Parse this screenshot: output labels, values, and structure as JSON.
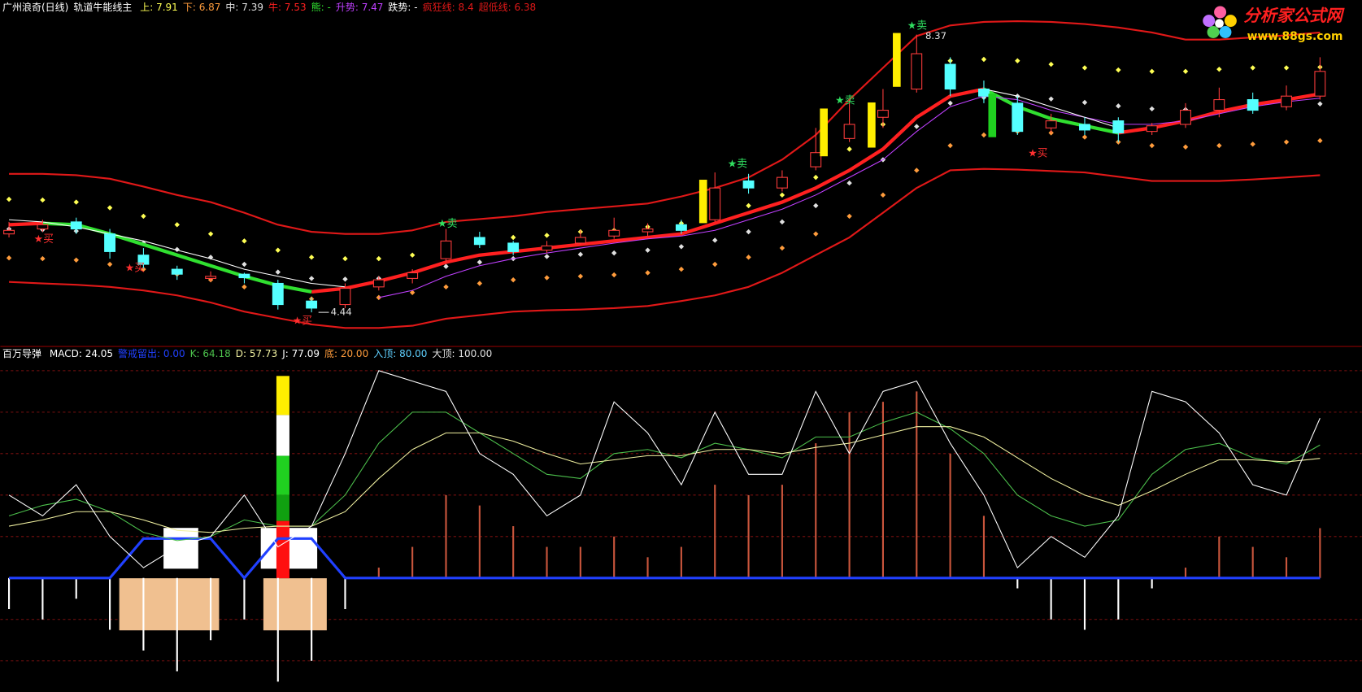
{
  "chart_data": [
    {
      "type": "candlestick",
      "title": "广州浪奇(日线)",
      "subtitle": "轨道牛能线主",
      "ylim": [
        3.97,
        8.86
      ],
      "up_color": "#ff3c3c",
      "down_color": "#54ffff",
      "title_color": "#ffffff",
      "open": [
        5.55,
        5.62,
        5.72,
        5.55,
        5.25,
        5.05,
        4.92,
        4.98,
        4.85,
        4.6,
        4.55,
        4.8,
        4.92,
        5.2,
        5.5,
        5.42,
        5.32,
        5.42,
        5.52,
        5.58,
        5.68,
        5.75,
        6.3,
        6.2,
        6.5,
        6.9,
        7.2,
        7.6,
        7.95,
        7.6,
        7.4,
        7.05,
        7.1,
        7.15,
        7.0,
        7.1,
        7.3,
        7.45,
        7.35,
        7.5
      ],
      "high": [
        5.72,
        5.75,
        5.78,
        5.62,
        5.35,
        5.1,
        5.02,
        5.0,
        4.9,
        4.65,
        4.85,
        4.95,
        5.05,
        5.62,
        5.58,
        5.45,
        5.45,
        5.6,
        5.78,
        5.7,
        5.75,
        6.42,
        6.4,
        6.45,
        7.05,
        7.45,
        7.6,
        8.37,
        8.05,
        7.72,
        7.5,
        7.25,
        7.2,
        7.2,
        7.12,
        7.4,
        7.62,
        7.55,
        7.65,
        8.05
      ],
      "low": [
        5.5,
        5.58,
        5.55,
        5.2,
        5.05,
        4.9,
        4.88,
        4.85,
        4.48,
        4.44,
        4.5,
        4.75,
        4.85,
        5.15,
        5.35,
        5.25,
        5.28,
        5.4,
        5.48,
        5.52,
        5.55,
        5.72,
        6.12,
        6.15,
        6.45,
        6.85,
        7.05,
        7.55,
        7.5,
        7.4,
        6.95,
        6.98,
        6.95,
        6.85,
        6.95,
        7.05,
        7.2,
        7.25,
        7.3,
        7.45
      ],
      "close": [
        5.6,
        5.68,
        5.62,
        5.3,
        5.12,
        4.98,
        4.95,
        4.93,
        4.55,
        4.5,
        4.78,
        4.9,
        5.0,
        5.45,
        5.4,
        5.3,
        5.38,
        5.5,
        5.6,
        5.62,
        5.6,
        6.2,
        6.2,
        6.35,
        6.7,
        7.1,
        7.3,
        8.1,
        7.6,
        7.5,
        7.0,
        7.15,
        7.02,
        6.98,
        7.08,
        7.3,
        7.45,
        7.3,
        7.5,
        7.85
      ],
      "buy_label": "★买",
      "sell_label": "★卖",
      "buy_color": "#ff3030",
      "sell_color": "#30e060",
      "series": [
        {
          "name": "上",
          "color": "#ffff54",
          "style": "dots",
          "values": [
            6.04,
            6.03,
            6.0,
            5.92,
            5.8,
            5.68,
            5.55,
            5.45,
            5.32,
            5.22,
            5.2,
            5.2,
            5.25,
            5.38,
            5.45,
            5.5,
            5.53,
            5.58,
            5.6,
            5.65,
            5.7,
            5.8,
            5.95,
            6.1,
            6.35,
            6.75,
            7.1,
            7.7,
            8.0,
            8.02,
            8.0,
            7.95,
            7.9,
            7.87,
            7.85,
            7.85,
            7.88,
            7.9,
            7.9,
            7.91
          ]
        },
        {
          "name": "下",
          "color": "#ff9c3c",
          "style": "dots",
          "values": [
            5.21,
            5.2,
            5.18,
            5.12,
            5.05,
            4.98,
            4.9,
            4.8,
            4.7,
            4.63,
            4.62,
            4.65,
            4.72,
            4.8,
            4.85,
            4.9,
            4.93,
            4.95,
            4.97,
            5.0,
            5.05,
            5.12,
            5.22,
            5.35,
            5.55,
            5.8,
            6.1,
            6.45,
            6.8,
            6.95,
            7.0,
            6.98,
            6.92,
            6.85,
            6.8,
            6.78,
            6.8,
            6.82,
            6.85,
            6.87
          ]
        },
        {
          "name": "中",
          "color": "#e0e0e0",
          "style": "dots",
          "values": [
            5.62,
            5.61,
            5.59,
            5.52,
            5.42,
            5.33,
            5.22,
            5.12,
            5.01,
            4.92,
            4.91,
            4.92,
            4.98,
            5.09,
            5.15,
            5.2,
            5.23,
            5.26,
            5.28,
            5.32,
            5.37,
            5.46,
            5.58,
            5.72,
            5.95,
            6.27,
            6.6,
            7.07,
            7.4,
            7.48,
            7.5,
            7.46,
            7.41,
            7.36,
            7.32,
            7.31,
            7.34,
            7.36,
            7.37,
            7.39
          ]
        },
        {
          "name": "牛",
          "color": "#ff2020",
          "style": "thick",
          "values": [
            5.68,
            5.7,
            null,
            null,
            null,
            null,
            null,
            null,
            null,
            4.73,
            4.78,
            4.88,
            5.0,
            5.15,
            5.25,
            5.3,
            5.35,
            5.4,
            5.45,
            5.5,
            5.55,
            5.7,
            5.85,
            6.0,
            6.2,
            6.45,
            6.75,
            7.2,
            7.5,
            7.6,
            null,
            null,
            null,
            6.98,
            7.05,
            7.15,
            7.28,
            7.38,
            7.45,
            7.53
          ]
        },
        {
          "name": "熊",
          "color": "#30e030",
          "style": "thick",
          "last_label": "-",
          "values": [
            null,
            5.7,
            5.68,
            5.55,
            5.4,
            5.25,
            5.1,
            4.95,
            4.82,
            4.73,
            null,
            null,
            null,
            null,
            null,
            null,
            null,
            null,
            null,
            null,
            null,
            null,
            null,
            null,
            null,
            null,
            null,
            null,
            null,
            7.6,
            7.35,
            7.18,
            7.08,
            6.98,
            null,
            null,
            null,
            null,
            null,
            null
          ]
        },
        {
          "name": "升势",
          "color": "#c040ff",
          "style": "thin",
          "values": [
            null,
            null,
            null,
            null,
            null,
            null,
            null,
            null,
            null,
            null,
            null,
            4.65,
            4.75,
            4.95,
            5.1,
            5.2,
            5.28,
            5.35,
            5.42,
            5.48,
            5.52,
            5.6,
            5.75,
            5.9,
            6.1,
            6.35,
            6.6,
            7.0,
            7.35,
            7.5,
            7.45,
            7.3,
            7.2,
            7.1,
            7.1,
            7.15,
            7.25,
            7.35,
            7.42,
            7.47
          ]
        },
        {
          "name": "跌势",
          "color": "#ffffff",
          "style": "thin",
          "last_label": "-",
          "values": [
            5.75,
            5.72,
            5.65,
            5.55,
            5.45,
            5.32,
            5.2,
            5.05,
            4.95,
            4.85,
            4.8,
            null,
            null,
            null,
            null,
            null,
            null,
            null,
            null,
            null,
            null,
            null,
            null,
            null,
            null,
            null,
            null,
            null,
            null,
            7.6,
            7.5,
            7.35,
            7.2,
            7.05,
            null,
            null,
            null,
            null,
            null,
            null
          ]
        },
        {
          "name": "疯狂线",
          "color": "#e01818",
          "style": "band",
          "values": [
            6.4,
            6.4,
            6.38,
            6.33,
            6.22,
            6.1,
            6.0,
            5.85,
            5.68,
            5.58,
            5.55,
            5.55,
            5.6,
            5.72,
            5.76,
            5.8,
            5.86,
            5.9,
            5.94,
            5.98,
            6.08,
            6.2,
            6.35,
            6.6,
            6.95,
            7.45,
            7.9,
            8.35,
            8.5,
            8.55,
            8.56,
            8.55,
            8.52,
            8.47,
            8.4,
            8.3,
            8.3,
            8.33,
            8.36,
            8.4
          ]
        },
        {
          "name": "超低线",
          "color": "#e01818",
          "style": "band",
          "values": [
            4.87,
            4.85,
            4.83,
            4.8,
            4.75,
            4.68,
            4.58,
            4.45,
            4.36,
            4.27,
            4.22,
            4.22,
            4.25,
            4.35,
            4.4,
            4.45,
            4.47,
            4.48,
            4.5,
            4.53,
            4.6,
            4.68,
            4.8,
            5.0,
            5.25,
            5.5,
            5.85,
            6.2,
            6.45,
            6.47,
            6.46,
            6.44,
            6.42,
            6.36,
            6.3,
            6.3,
            6.3,
            6.32,
            6.35,
            6.38
          ]
        }
      ]
    },
    {
      "type": "indicator",
      "title": "百万导弹",
      "ylim": [
        -55,
        105
      ],
      "grid": [
        -40,
        -20,
        40,
        60
      ],
      "series": [
        {
          "name": "MACD",
          "type": "bars",
          "color": "#ffffff",
          "up_color": "#c8553c",
          "down_color": "#ffffff",
          "values": [
            -15,
            -20,
            -10,
            -25,
            -35,
            -45,
            -30,
            -20,
            -50,
            -40,
            -15,
            5,
            15,
            40,
            35,
            25,
            15,
            15,
            20,
            10,
            15,
            45,
            40,
            45,
            65,
            80,
            85,
            90,
            60,
            30,
            -5,
            -20,
            -25,
            -20,
            -5,
            5,
            20,
            15,
            10,
            24.05
          ]
        },
        {
          "name": "警戒留出",
          "type": "line",
          "color": "#2040ff",
          "width": 3,
          "last_label": "0.00",
          "values": [
            0,
            0,
            0,
            0,
            19,
            19,
            19,
            0,
            19,
            19,
            0,
            0,
            0,
            0,
            0,
            0,
            0,
            0,
            0,
            0,
            0,
            0,
            0,
            0,
            0,
            0,
            0,
            0,
            0,
            0,
            0,
            0,
            0,
            0,
            0,
            0,
            0,
            0,
            0,
            0
          ]
        },
        {
          "name": "K",
          "type": "line",
          "color": "#4cc04c",
          "width": 1,
          "values": [
            30,
            35,
            38,
            32,
            22,
            18,
            20,
            28,
            25,
            25,
            40,
            65,
            80,
            80,
            70,
            60,
            50,
            48,
            60,
            62,
            58,
            65,
            62,
            58,
            68,
            68,
            75,
            80,
            72,
            60,
            40,
            30,
            25,
            28,
            50,
            62,
            65,
            58,
            55,
            64.18
          ]
        },
        {
          "name": "D",
          "type": "line",
          "color": "#f0f0a0",
          "width": 1,
          "values": [
            25,
            28,
            32,
            32,
            28,
            23,
            22,
            24,
            25,
            25,
            32,
            48,
            62,
            70,
            70,
            66,
            60,
            55,
            57,
            59,
            59,
            62,
            62,
            60,
            63,
            65,
            69,
            73,
            73,
            68,
            58,
            48,
            40,
            35,
            42,
            50,
            57,
            57,
            56,
            57.73
          ]
        },
        {
          "name": "J",
          "type": "line",
          "color": "#ffffff",
          "width": 1,
          "values": [
            40,
            30,
            45,
            20,
            5,
            15,
            20,
            40,
            15,
            25,
            60,
            100,
            95,
            90,
            60,
            50,
            30,
            40,
            85,
            70,
            45,
            80,
            50,
            50,
            90,
            60,
            90,
            95,
            65,
            40,
            5,
            20,
            10,
            30,
            90,
            85,
            70,
            45,
            40,
            77.09
          ]
        }
      ],
      "levels": [
        {
          "name": "底",
          "value": 20,
          "label": "20.00",
          "color": "#ff9c3c"
        },
        {
          "name": "入顶",
          "value": 80,
          "label": "80.00",
          "color": "#5fd0ff"
        },
        {
          "name": "大顶",
          "value": 100,
          "label": "100.00",
          "color": "#e0e0e0"
        }
      ]
    }
  ],
  "watermark": {
    "name": "分析家公式网",
    "url": "www.88gs.com"
  }
}
